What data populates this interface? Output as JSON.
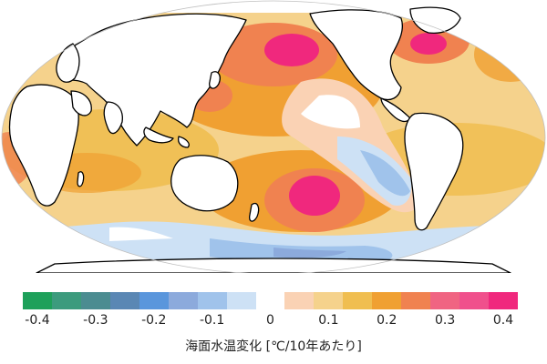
{
  "map": {
    "type": "robinson-world-sst-trend",
    "colors": {
      "land": "#ffffff",
      "coastline": "#000000",
      "ocean_edge": "#c0c0c0"
    }
  },
  "colorbar": {
    "title": "海面水温変化  [℃/10年あたり]",
    "colors": [
      "#1ea05a",
      "#3c9b7d",
      "#4b8c91",
      "#5a87b4",
      "#5a96dc",
      "#8caadc",
      "#a0c3eb",
      "#cde1f5",
      "#ffffff",
      "#fad2b4",
      "#f5d28c",
      "#f0be50",
      "#f0a032",
      "#f08250",
      "#f06482",
      "#f0508c",
      "#f0287d"
    ],
    "ticks": [
      "-0.4",
      "-0.3",
      "-0.2",
      "-0.1",
      "0",
      "0.1",
      "0.2",
      "0.3",
      "0.4"
    ]
  }
}
